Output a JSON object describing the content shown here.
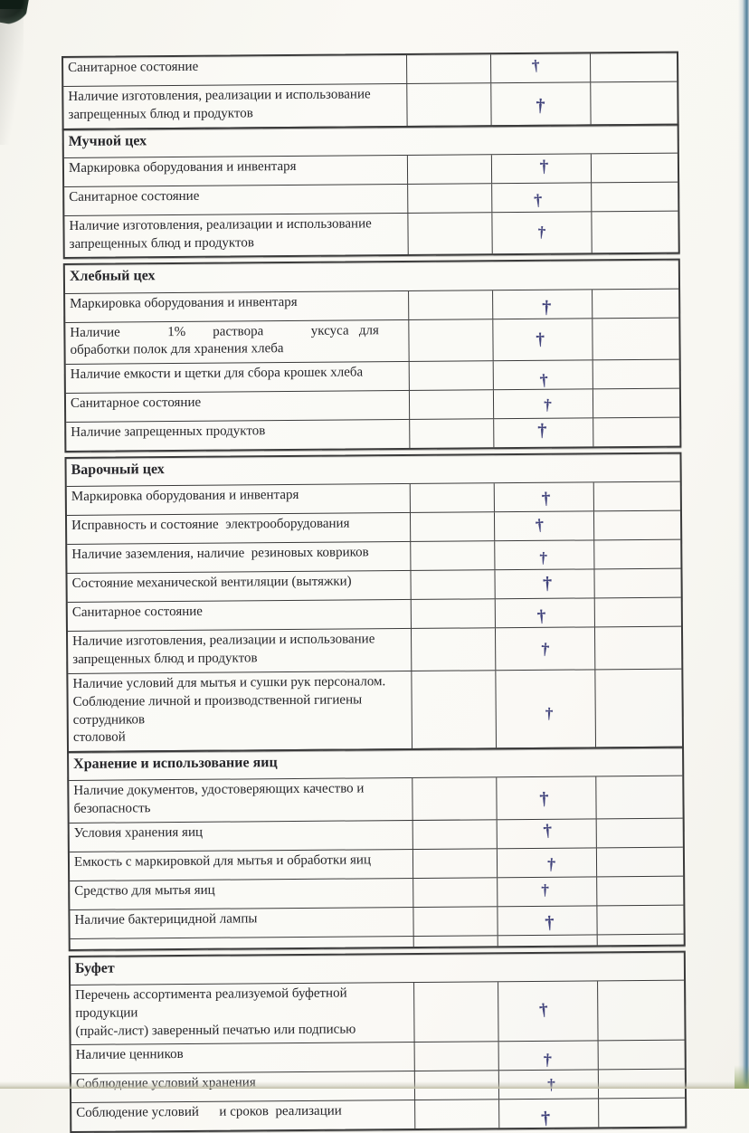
{
  "document": {
    "type_note": "scanned sanitary checklist page (continuation)",
    "ink_color": "#40427b",
    "check_glyph": "†",
    "sections": [
      {
        "header": null,
        "rows": [
          {
            "label": "Санитарное состояние",
            "mark": "†"
          },
          {
            "label": "Наличие изготовления, реализации и использование\nзапрещенных блюд и продуктов",
            "mark": "†"
          }
        ]
      },
      {
        "header": "Мучной цех",
        "rows": [
          {
            "label": "Маркировка оборудования и инвентаря",
            "mark": "†"
          },
          {
            "label": "Санитарное состояние",
            "mark": "†"
          },
          {
            "label": "Наличие изготовления, реализации и использование\nзапрещенных блюд и продуктов",
            "mark": "†"
          }
        ]
      },
      {
        "header": "Хлебный цех",
        "rows": [
          {
            "label": "Маркировка оборудования и инвентаря",
            "mark": "†"
          },
          {
            "label": "Наличие              1%        раствора              уксуса   для\nобработки полок для хранения хлеба",
            "mark": "†"
          },
          {
            "label": "Наличие емкости и щетки для сбора крошек хлеба",
            "mark": "†"
          },
          {
            "label": "Санитарное состояние",
            "mark": "†"
          },
          {
            "label": "Наличие запрещенных продуктов",
            "mark": "†"
          }
        ]
      },
      {
        "header": "Варочный цех",
        "rows": [
          {
            "label": "Маркировка оборудования и инвентаря",
            "mark": "†"
          },
          {
            "label": "Исправность и состояние  электрооборудования",
            "mark": "†"
          },
          {
            "label": "Наличие заземления, наличие  резиновых ковриков",
            "mark": "†"
          },
          {
            "label": "Состояние механической вентиляции (вытяжки)",
            "mark": "†"
          },
          {
            "label": "Санитарное состояние",
            "mark": "†"
          },
          {
            "label": "Наличие изготовления, реализации и использование\nзапрещенных блюд и продуктов",
            "mark": "†"
          },
          {
            "label": "Наличие условий для мытья и сушки рук персоналом.\nСоблюдение личной и производственной гигиены сотрудников\nстоловой",
            "mark": "†"
          }
        ]
      },
      {
        "header": "Хранение и использование яиц",
        "rows": [
          {
            "label": "Наличие документов, удостоверяющих качество и\nбезопасность",
            "mark": "†"
          },
          {
            "label": "Условия хранения яиц",
            "mark": "†"
          },
          {
            "label": "Емкость с маркировкой для мытья и обработки яиц",
            "mark": "†"
          },
          {
            "label": "Средство для мытья яиц",
            "mark": "†"
          },
          {
            "label": "Наличие бактерицидной лампы",
            "mark": "†"
          },
          {
            "label": "",
            "mark": "",
            "spacer": true
          }
        ]
      },
      {
        "header": "Буфет",
        "rows": [
          {
            "label": "Перечень ассортимента реализуемой буфетной продукции\n(прайс-лист) заверенный печатью или подписью",
            "mark": "†"
          },
          {
            "label": "Наличие ценников",
            "mark": "†"
          },
          {
            "label": "Соблюдение условий хранения",
            "mark": "†"
          },
          {
            "label": "Соблюдение условий      и сроков  реализации",
            "mark": "†"
          }
        ]
      }
    ]
  }
}
